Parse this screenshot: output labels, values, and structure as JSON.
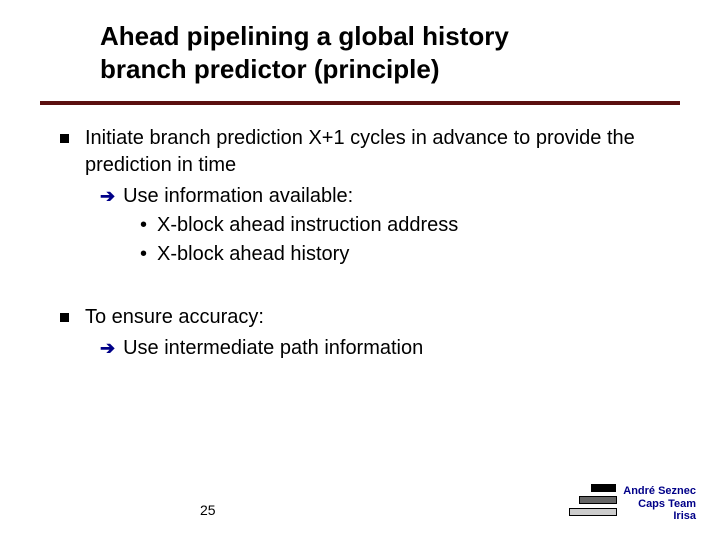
{
  "title_line1": "Ahead pipelining a global history",
  "title_line2": "branch predictor (principle)",
  "bullets": {
    "b1": "Initiate branch prediction X+1 cycles  in advance to provide the prediction in time",
    "b1_arrow": "Use information available:",
    "b1_dot1": "X-block ahead instruction address",
    "b1_dot2": "X-block ahead history",
    "b2": "To ensure accuracy:",
    "b2_arrow": "Use  intermediate path information"
  },
  "page_number": "25",
  "footer": {
    "line1": "André Seznec",
    "line2": "Caps Team",
    "line3": "Irisa"
  },
  "colors": {
    "rule": "#5b0f0f",
    "arrow": "#000088",
    "footer_text": "#000088"
  }
}
